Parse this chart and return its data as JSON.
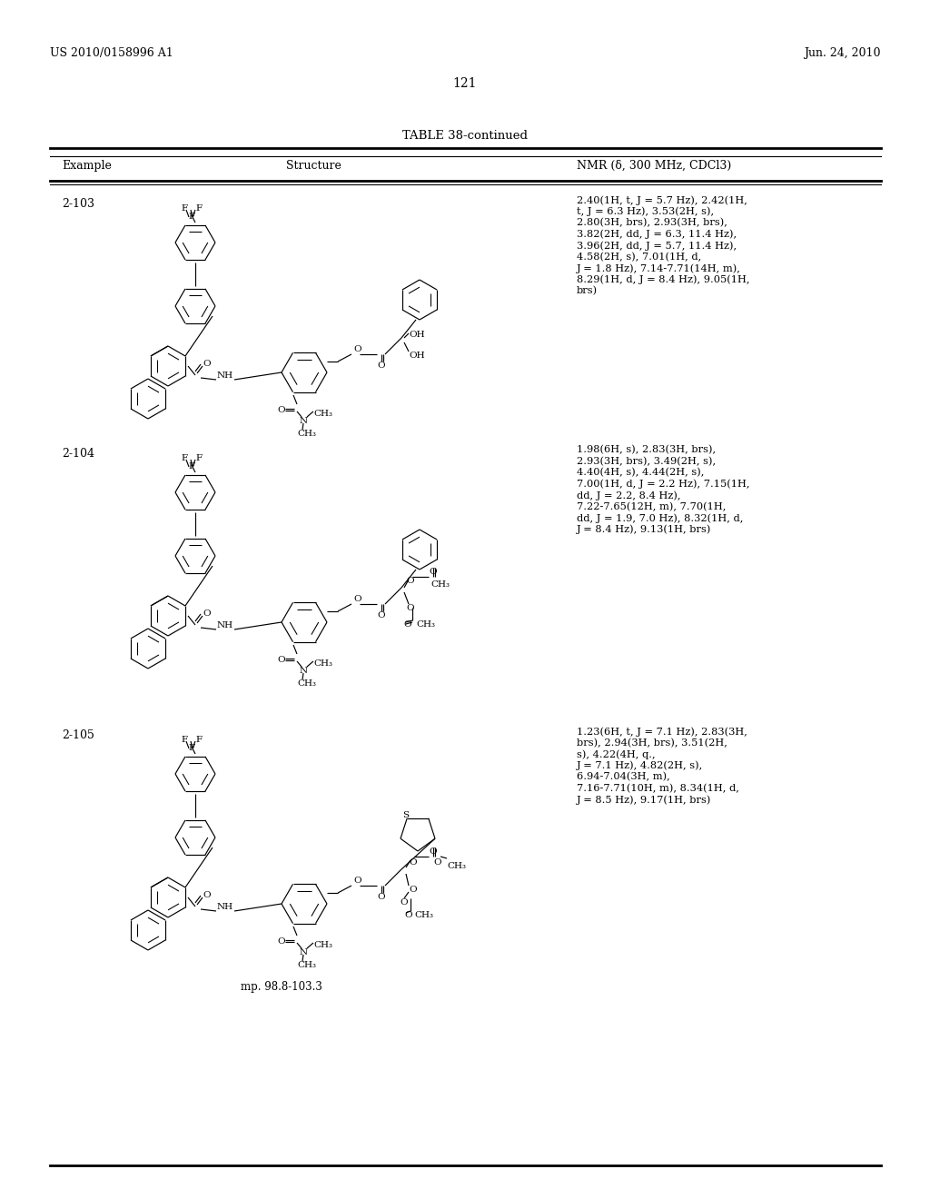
{
  "header_left": "US 2010/0158996 A1",
  "header_right": "Jun. 24, 2010",
  "page_number": "121",
  "table_title": "TABLE 38-continued",
  "col1_header": "Example",
  "col2_header": "Structure",
  "col3_header": "NMR (δ, 300 MHz, CDCl3)",
  "row1_example": "2-103",
  "row1_nmr_lines": [
    "2.40(1H, t, J = 5.7 Hz), 2.42(1H,",
    "t, J = 6.3 Hz), 3.53(2H, s),",
    "2.80(3H, brs), 2.93(3H, brs),",
    "3.82(2H, dd, J = 6.3, 11.4 Hz),",
    "3.96(2H, dd, J = 5.7, 11.4 Hz),",
    "4.58(2H, s), 7.01(1H, d,",
    "J = 1.8 Hz), 7.14-7.71(14H, m),",
    "8.29(1H, d, J = 8.4 Hz), 9.05(1H,",
    "brs)"
  ],
  "row2_example": "2-104",
  "row2_nmr_lines": [
    "1.98(6H, s), 2.83(3H, brs),",
    "2.93(3H, brs), 3.49(2H, s),",
    "4.40(4H, s), 4.44(2H, s),",
    "7.00(1H, d, J = 2.2 Hz), 7.15(1H,",
    "dd, J = 2.2, 8.4 Hz),",
    "7.22-7.65(12H, m), 7.70(1H,",
    "dd, J = 1.9, 7.0 Hz), 8.32(1H, d,",
    "J = 8.4 Hz), 9.13(1H, brs)"
  ],
  "row3_example": "2-105",
  "row3_nmr_lines": [
    "1.23(6H, t, J = 7.1 Hz), 2.83(3H,",
    "brs), 2.94(3H, brs), 3.51(2H,",
    "s), 4.22(4H, q.,",
    "J = 7.1 Hz), 4.82(2H, s),",
    "6.94-7.04(3H, m),",
    "7.16-7.71(10H, m), 8.34(1H, d,",
    "J = 8.5 Hz), 9.17(1H, brs)"
  ],
  "row3_mp": "mp. 98.8-103.3"
}
